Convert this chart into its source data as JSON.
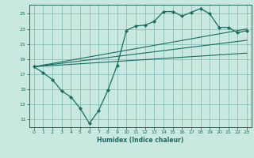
{
  "title": "",
  "xlabel": "Humidex (Indice chaleur)",
  "background_color": "#c8e8e0",
  "grid_color": "#7ab8b0",
  "line_color": "#1a6b60",
  "xlim": [
    -0.5,
    23.5
  ],
  "ylim": [
    10.0,
    26.2
  ],
  "xticks": [
    0,
    1,
    2,
    3,
    4,
    5,
    6,
    7,
    8,
    9,
    10,
    11,
    12,
    13,
    14,
    15,
    16,
    17,
    18,
    19,
    20,
    21,
    22,
    23
  ],
  "yticks": [
    11,
    13,
    15,
    17,
    19,
    21,
    23,
    25
  ],
  "line1_x": [
    0,
    1,
    2,
    3,
    4,
    5,
    6,
    7,
    8,
    9,
    10,
    11,
    12,
    13,
    14,
    15,
    16,
    17,
    18,
    19,
    20,
    21,
    22,
    23
  ],
  "line1_y": [
    18.0,
    17.2,
    16.3,
    14.8,
    14.0,
    12.5,
    10.5,
    12.2,
    14.9,
    18.2,
    22.8,
    23.4,
    23.5,
    24.0,
    25.3,
    25.3,
    24.7,
    25.2,
    25.7,
    25.0,
    23.2,
    23.2,
    22.5,
    22.8
  ],
  "line2_x": [
    0,
    23
  ],
  "line2_y": [
    18.0,
    23.0
  ],
  "line3_x": [
    0,
    23
  ],
  "line3_y": [
    18.0,
    21.5
  ],
  "line4_x": [
    0,
    23
  ],
  "line4_y": [
    18.0,
    19.8
  ]
}
